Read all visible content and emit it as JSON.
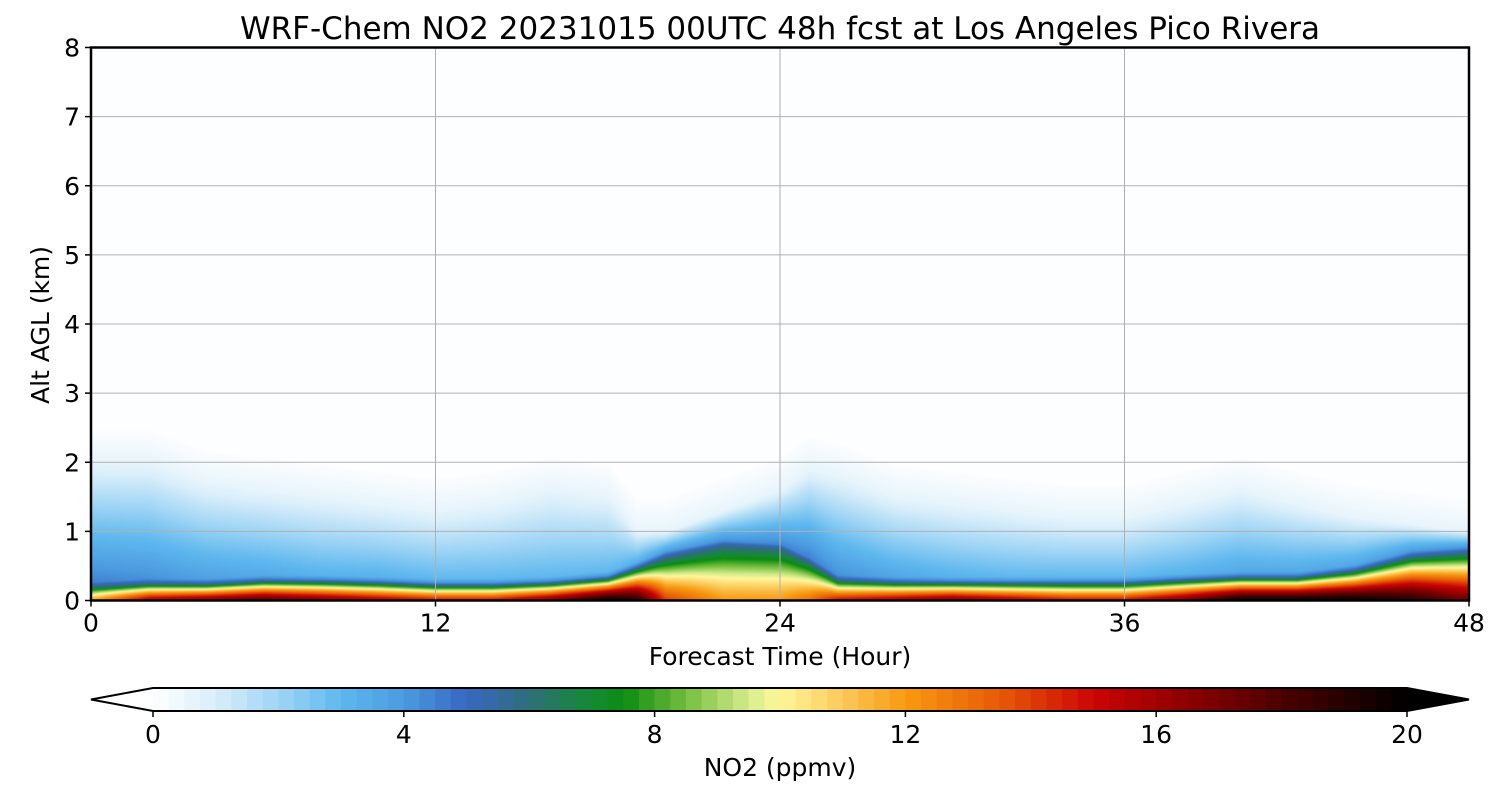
{
  "chart_data": {
    "type": "heatmap",
    "title": "WRF-Chem NO2  20231015 00UTC 48h fcst at Los Angeles Pico Rivera",
    "xlabel": "Forecast Time (Hour)",
    "ylabel": "Alt AGL (km)",
    "xlim": [
      0,
      48
    ],
    "ylim": [
      0,
      8
    ],
    "xticks": [
      "0",
      "12",
      "24",
      "36",
      "48"
    ],
    "yticks": [
      "0",
      "1",
      "2",
      "3",
      "4",
      "5",
      "6",
      "7",
      "8"
    ],
    "grid": true,
    "profile_hours": [
      0,
      2,
      4,
      6,
      8,
      10,
      12,
      14,
      16,
      18,
      19,
      20,
      22,
      24,
      25,
      26,
      28,
      30,
      32,
      34,
      36,
      38,
      40,
      42,
      44,
      46,
      48
    ],
    "surface_no2": [
      12,
      16,
      17,
      18,
      17,
      16,
      15,
      15,
      17,
      20,
      19,
      14,
      12,
      12,
      13,
      15,
      16,
      17,
      16,
      15,
      15,
      17,
      20,
      20,
      20,
      19,
      17
    ],
    "layer_depth_km": [
      0.2,
      0.25,
      0.25,
      0.3,
      0.3,
      0.28,
      0.25,
      0.25,
      0.28,
      0.35,
      0.5,
      0.65,
      0.8,
      0.75,
      0.55,
      0.3,
      0.28,
      0.28,
      0.28,
      0.28,
      0.28,
      0.32,
      0.35,
      0.35,
      0.45,
      0.65,
      0.7
    ],
    "aloft_no2": [
      4.5,
      4.2,
      3.8,
      3.5,
      3.2,
      3.2,
      3.0,
      3.0,
      3.0,
      3.0,
      3.2,
      3.8,
      4.2,
      4.4,
      4.5,
      4.2,
      3.6,
      3.2,
      3.0,
      3.0,
      3.0,
      3.2,
      3.5,
      3.5,
      3.6,
      4.0,
      4.2
    ],
    "plume_top_km": [
      2.0,
      2.0,
      1.7,
      1.6,
      1.5,
      1.4,
      1.3,
      1.4,
      1.6,
      1.5,
      1.0,
      1.0,
      1.3,
      1.6,
      1.9,
      1.8,
      1.5,
      1.4,
      1.3,
      1.2,
      1.2,
      1.4,
      1.6,
      1.4,
      1.2,
      1.1,
      1.0
    ],
    "colorbar": {
      "label": "NO2  (ppmv)",
      "min": 0,
      "max": 20,
      "ticks": [
        "0",
        "4",
        "8",
        "12",
        "16",
        "20"
      ],
      "extend": "both",
      "stops": [
        {
          "v": 0,
          "c": "#ffffff"
        },
        {
          "v": 1,
          "c": "#d8eefa"
        },
        {
          "v": 2,
          "c": "#9fd5f5"
        },
        {
          "v": 3,
          "c": "#5fb8ee"
        },
        {
          "v": 4,
          "c": "#4a9be0"
        },
        {
          "v": 5,
          "c": "#3868c2"
        },
        {
          "v": 6,
          "c": "#2e6e7a"
        },
        {
          "v": 7,
          "c": "#148a32"
        },
        {
          "v": 7.5,
          "c": "#0a8c10"
        },
        {
          "v": 8.5,
          "c": "#74be3e"
        },
        {
          "v": 9.5,
          "c": "#d6ec8c"
        },
        {
          "v": 10,
          "c": "#fff79a"
        },
        {
          "v": 11,
          "c": "#fbc95a"
        },
        {
          "v": 12,
          "c": "#f89a10"
        },
        {
          "v": 13.5,
          "c": "#e65a08"
        },
        {
          "v": 15,
          "c": "#cc0404"
        },
        {
          "v": 16.5,
          "c": "#8c0000"
        },
        {
          "v": 18,
          "c": "#4c0000"
        },
        {
          "v": 20,
          "c": "#000000"
        }
      ]
    }
  }
}
